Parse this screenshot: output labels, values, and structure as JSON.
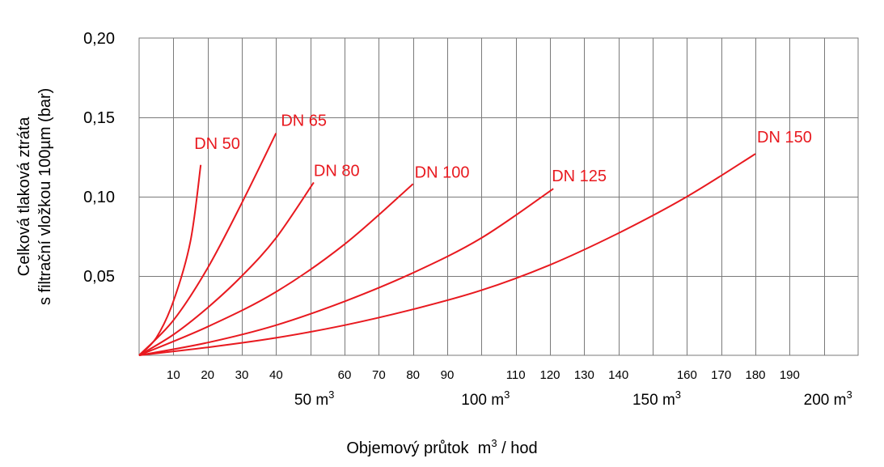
{
  "chart_data": {
    "type": "line",
    "ylabel_line1": "Celková tlaková ztráta",
    "ylabel_line2": "s filtrační vložkou 100µm (bar)",
    "xlabel_main": "Objemový průtok",
    "xlabel_unit": "m",
    "xlabel_unit_sup": "3",
    "xlabel_unit_tail": " / hod",
    "ylim": [
      0,
      0.2
    ],
    "xlim": [
      0,
      210
    ],
    "y_ticks": [
      {
        "value": 0.05,
        "label": "0,05"
      },
      {
        "value": 0.1,
        "label": "0,10"
      },
      {
        "value": 0.15,
        "label": "0,15"
      },
      {
        "value": 0.2,
        "label": "0,20"
      }
    ],
    "x_ticks": [
      {
        "value": 10,
        "label": "10"
      },
      {
        "value": 20,
        "label": "20"
      },
      {
        "value": 30,
        "label": "30"
      },
      {
        "value": 40,
        "label": "40"
      },
      {
        "value": 60,
        "label": "60"
      },
      {
        "value": 70,
        "label": "70"
      },
      {
        "value": 80,
        "label": "80"
      },
      {
        "value": 90,
        "label": "90"
      },
      {
        "value": 110,
        "label": "110"
      },
      {
        "value": 120,
        "label": "120"
      },
      {
        "value": 130,
        "label": "130"
      },
      {
        "value": 140,
        "label": "140"
      },
      {
        "value": 160,
        "label": "160"
      },
      {
        "value": 170,
        "label": "170"
      },
      {
        "value": 180,
        "label": "180"
      },
      {
        "value": 190,
        "label": "190"
      }
    ],
    "x_major": [
      {
        "value": 50,
        "label": "50 m",
        "sup": "3"
      },
      {
        "value": 100,
        "label": "100 m",
        "sup": "3"
      },
      {
        "value": 150,
        "label": "150 m",
        "sup": "3"
      },
      {
        "value": 200,
        "label": "200 m",
        "sup": "3"
      }
    ],
    "series_color": "#e8191f",
    "series": [
      {
        "name": "DN 50",
        "x": [
          0,
          5,
          10,
          15,
          18
        ],
        "y": [
          0,
          0.011,
          0.034,
          0.072,
          0.12
        ]
      },
      {
        "name": "DN 65",
        "x": [
          0,
          10,
          20,
          30,
          40
        ],
        "y": [
          0,
          0.022,
          0.055,
          0.096,
          0.14
        ]
      },
      {
        "name": "DN 80",
        "x": [
          0,
          10,
          20,
          30,
          40,
          51
        ],
        "y": [
          0,
          0.013,
          0.03,
          0.05,
          0.074,
          0.109
        ]
      },
      {
        "name": "DN 100",
        "x": [
          0,
          20,
          40,
          60,
          80
        ],
        "y": [
          0,
          0.018,
          0.04,
          0.07,
          0.108
        ]
      },
      {
        "name": "DN 125",
        "x": [
          0,
          20,
          40,
          60,
          80,
          100,
          121
        ],
        "y": [
          0,
          0.008,
          0.019,
          0.034,
          0.052,
          0.074,
          0.105
        ]
      },
      {
        "name": "DN 150",
        "x": [
          0,
          20,
          40,
          60,
          80,
          100,
          120,
          140,
          160,
          180
        ],
        "y": [
          0,
          0.005,
          0.011,
          0.019,
          0.029,
          0.041,
          0.057,
          0.077,
          0.1,
          0.127
        ]
      }
    ]
  }
}
